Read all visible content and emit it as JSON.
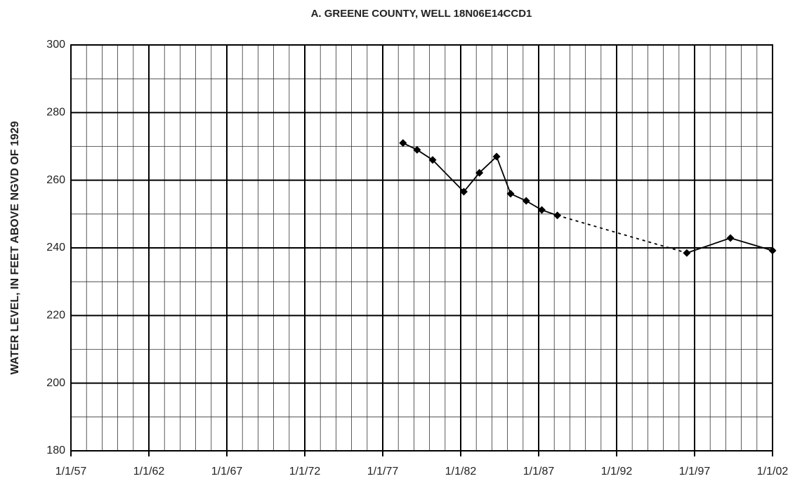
{
  "chart_data": {
    "type": "line",
    "title": "A. GREENE COUNTY, WELL 18N06E14CCD1",
    "y_label": "WATER LEVEL, IN FEET ABOVE NGVD OF 1929",
    "x": [
      1978.3,
      1979.2,
      1980.2,
      1982.2,
      1983.2,
      1984.3,
      1985.2,
      1986.2,
      1987.2,
      1988.2,
      1996.5,
      1999.3,
      2002.0
    ],
    "values": [
      271,
      269,
      266,
      256.6,
      262.2,
      267,
      256,
      253.9,
      251.2,
      249.6,
      238.5,
      242.9,
      239.2
    ],
    "segment_styles": [
      "solid",
      "solid",
      "solid",
      "solid",
      "solid",
      "solid",
      "solid",
      "solid",
      "solid",
      "dashed",
      "solid",
      "solid"
    ],
    "color": "#000000",
    "xlim": [
      1957,
      2002
    ],
    "xticks": [
      {
        "value": 1957,
        "label": "1/1/57"
      },
      {
        "value": 1962,
        "label": "1/1/62"
      },
      {
        "value": 1967,
        "label": "1/1/67"
      },
      {
        "value": 1972,
        "label": "1/1/72"
      },
      {
        "value": 1977,
        "label": "1/1/77"
      },
      {
        "value": 1982,
        "label": "1/1/82"
      },
      {
        "value": 1987,
        "label": "1/1/87"
      },
      {
        "value": 1992,
        "label": "1/1/92"
      },
      {
        "value": 1997,
        "label": "1/1/97"
      },
      {
        "value": 2002,
        "label": "1/1/02"
      }
    ],
    "xgrid_minor": [
      1958,
      1959,
      1960,
      1961,
      1963,
      1964,
      1965,
      1966,
      1968,
      1969,
      1970,
      1971,
      1973,
      1974,
      1975,
      1976,
      1978,
      1979,
      1980,
      1981,
      1983,
      1984,
      1985,
      1986,
      1988,
      1989,
      1990,
      1991,
      1993,
      1994,
      1995,
      1996,
      1998,
      1999,
      2000,
      2001
    ],
    "ylim": [
      180,
      300
    ],
    "yticks": [
      180,
      200,
      220,
      240,
      260,
      280,
      300
    ],
    "ygrid_minor": [
      190,
      210,
      230,
      250,
      270,
      290
    ],
    "grid": true
  }
}
